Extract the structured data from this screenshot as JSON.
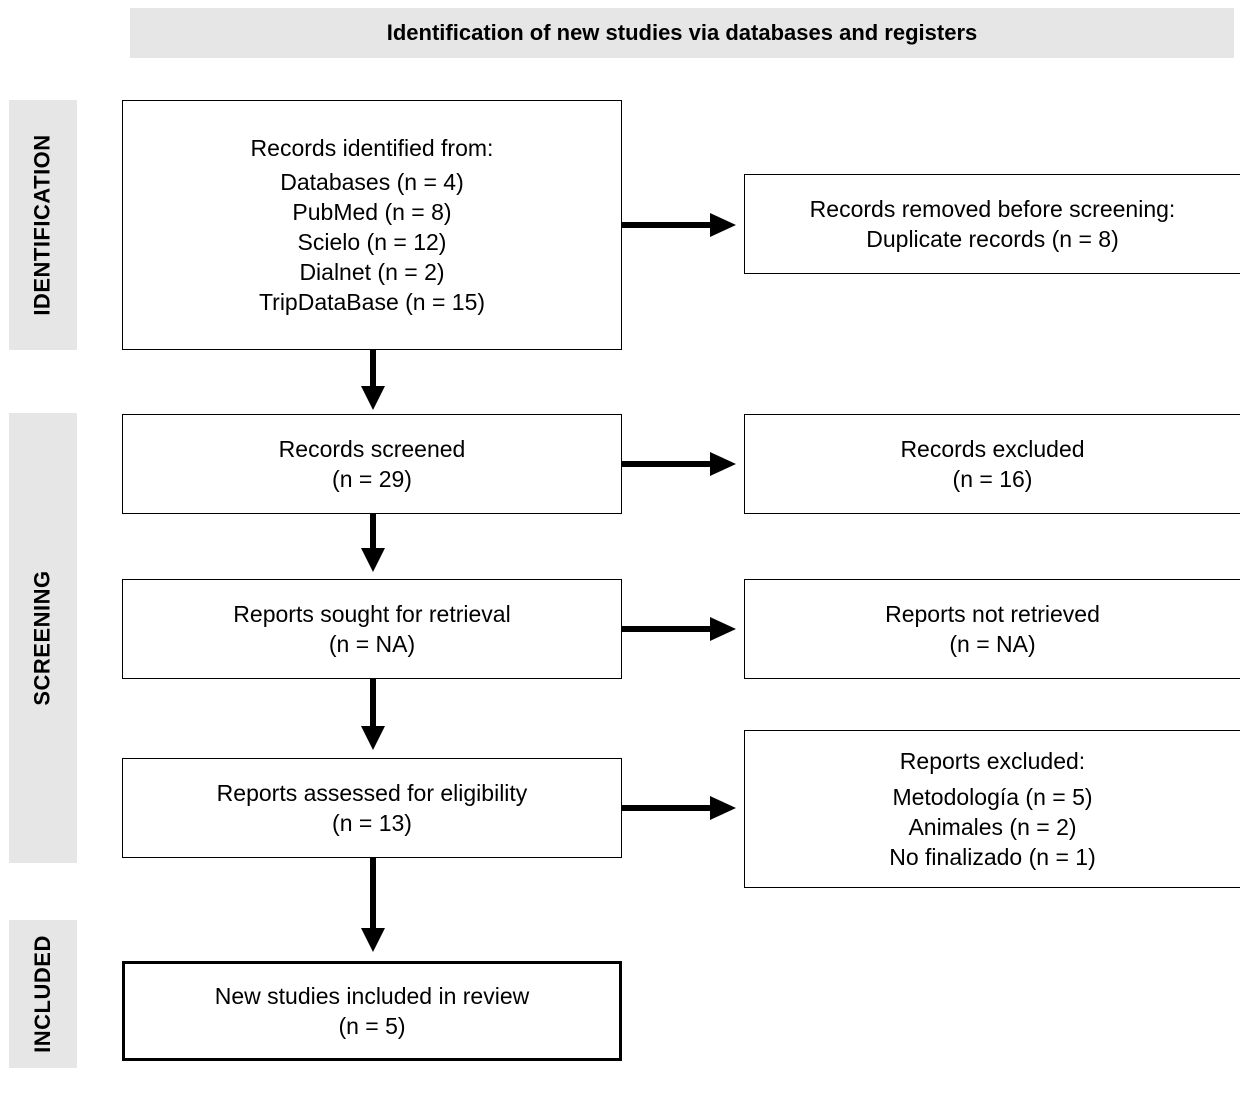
{
  "header": {
    "title": "Identification of new studies via databases and registers"
  },
  "phases": {
    "identification": "IDENTIFICATION",
    "screening": "SCREENING",
    "included": "INCLUDED"
  },
  "boxes": {
    "records_identified": {
      "lines": [
        "Records identified from:",
        "Databases (n = 4)",
        "PubMed (n = 8)",
        "Scielo (n = 12)",
        "Dialnet (n = 2)",
        "TripDataBase (n = 15)"
      ]
    },
    "records_removed": {
      "lines": [
        "Records removed before screening:",
        "Duplicate records (n = 8)"
      ]
    },
    "records_screened": {
      "lines": [
        "Records screened",
        "(n = 29)"
      ]
    },
    "records_excluded": {
      "lines": [
        "Records excluded",
        "(n = 16)"
      ]
    },
    "reports_sought": {
      "lines": [
        "Reports sought for retrieval",
        "(n = NA)"
      ]
    },
    "reports_not_retrieved": {
      "lines": [
        "Reports not retrieved",
        "(n = NA)"
      ]
    },
    "reports_assessed": {
      "lines": [
        "Reports assessed for eligibility",
        "(n = 13)"
      ]
    },
    "reports_excluded": {
      "lines": [
        "Reports excluded:",
        "Metodología (n = 5)",
        "Animales (n = 2)",
        "No finalizado (n = 1)"
      ]
    },
    "studies_included": {
      "lines": [
        "New studies included in review",
        "(n = 5)"
      ]
    }
  }
}
